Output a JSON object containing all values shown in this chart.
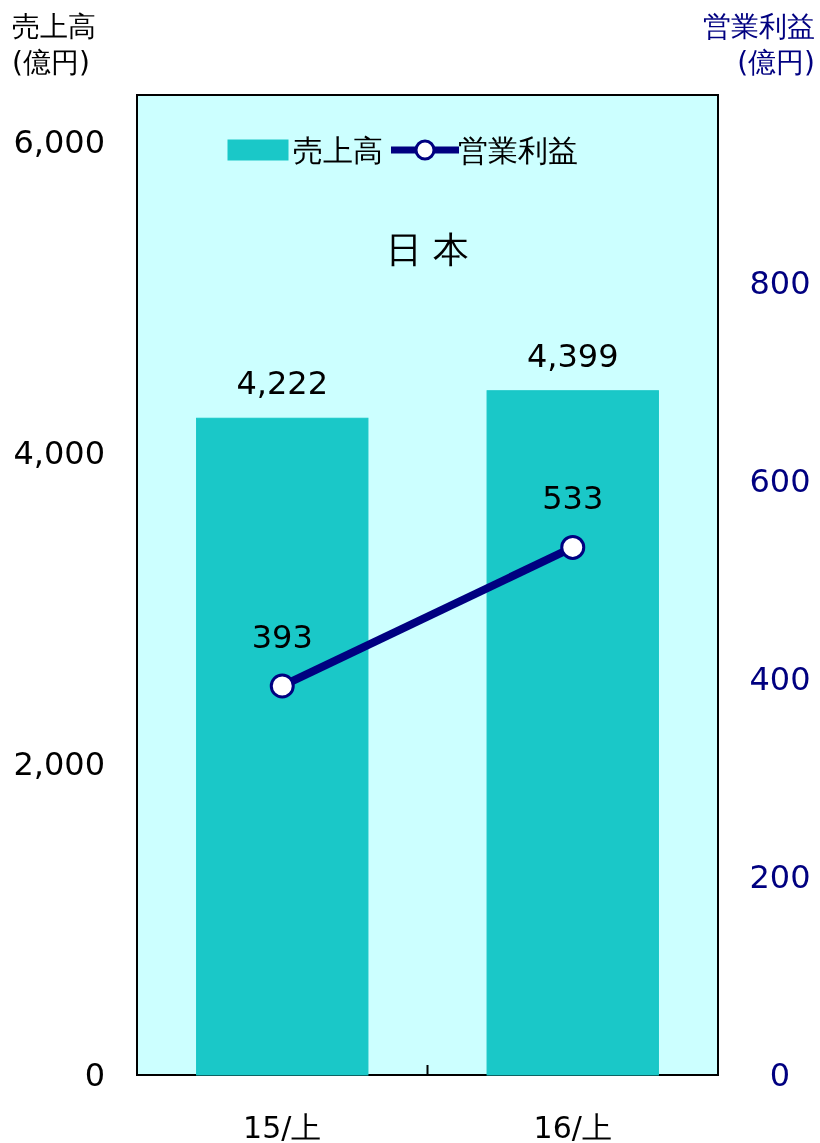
{
  "chart_data": {
    "type": "bar",
    "title": "日 本",
    "ylabel": "売上高 (億円)",
    "y2label": "営業利益 (億円)",
    "categories": [
      "15/上",
      "16/上"
    ],
    "series": [
      {
        "name": "売上高",
        "color": "#1ac8c8",
        "values": [
          4222,
          4399
        ],
        "value_labels": [
          "4,222",
          "4,399"
        ]
      },
      {
        "name": "営業利益",
        "type": "line",
        "axis": "y2",
        "color": "#000080",
        "marker": "circle",
        "values": [
          393,
          533
        ]
      }
    ],
    "ylim": [
      0,
      6300
    ],
    "yticks": [
      {
        "value": 0,
        "label": "0"
      },
      {
        "value": 2000,
        "label": "2,000"
      },
      {
        "value": 4000,
        "label": "4,000"
      },
      {
        "value": 6000,
        "label": "6,000"
      }
    ],
    "y2lim": [
      0,
      990
    ],
    "y2ticks": [
      0,
      200,
      400,
      600,
      800
    ],
    "data_labels": true,
    "legend": "top",
    "grid": false
  }
}
